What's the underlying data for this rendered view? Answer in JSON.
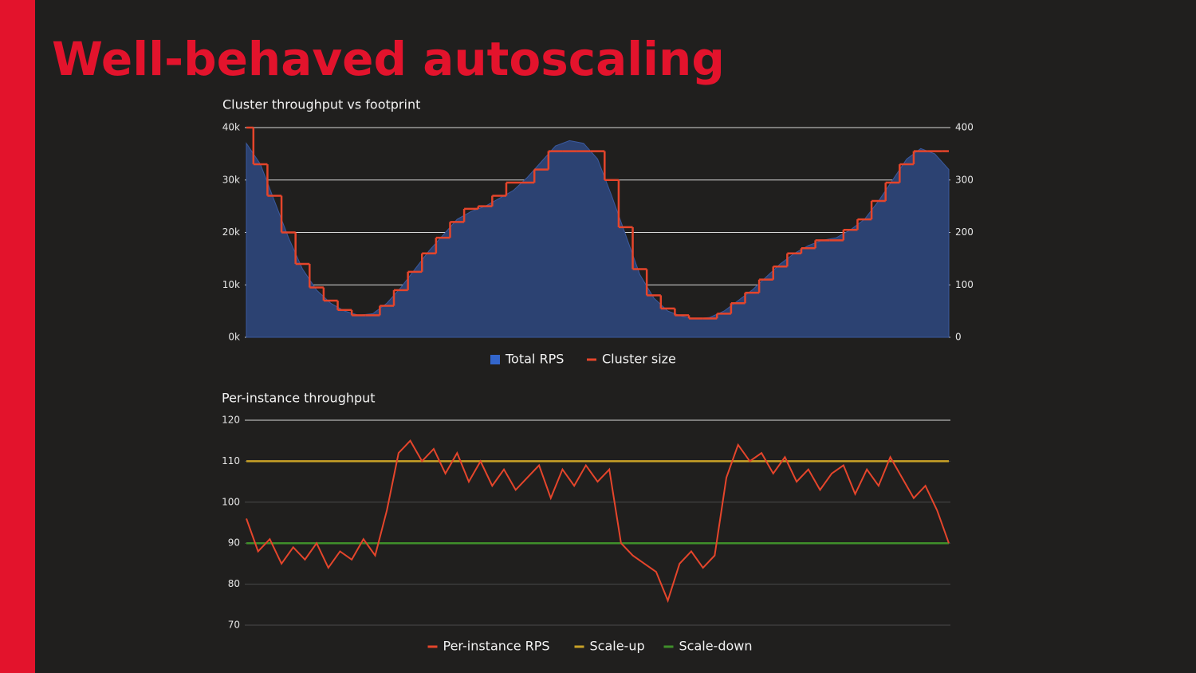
{
  "header": {
    "title": "Well-behaved autoscaling"
  },
  "chart_data": [
    {
      "type": "area",
      "title": "Cluster throughput vs footprint",
      "ylim": [
        0,
        40000
      ],
      "yticks": [
        {
          "value": 0,
          "label": "0k"
        },
        {
          "value": 10000,
          "label": "10k"
        },
        {
          "value": 20000,
          "label": "20k"
        },
        {
          "value": 30000,
          "label": "30k"
        },
        {
          "value": 40000,
          "label": "40k"
        }
      ],
      "y2lim": [
        0,
        400
      ],
      "y2ticks": [
        0,
        100,
        200,
        300,
        400
      ],
      "grid": true,
      "legend": "bottom",
      "series": [
        {
          "name": "Total RPS",
          "color": "#2c4272",
          "values": [
            37000,
            33000,
            26000,
            19000,
            13000,
            9000,
            6500,
            5000,
            4200,
            4500,
            6500,
            9500,
            13000,
            16500,
            19500,
            22500,
            24000,
            25000,
            26500,
            28000,
            30500,
            33500,
            36500,
            37500,
            37000,
            34000,
            27000,
            19500,
            12000,
            7500,
            5000,
            4000,
            3500,
            3800,
            5000,
            7000,
            9000,
            11500,
            14000,
            16000,
            17500,
            18500,
            19000,
            20500,
            22500,
            26000,
            30000,
            34000,
            36000,
            35000,
            32000
          ]
        },
        {
          "name": "Cluster size",
          "color": "#e5452b",
          "axis": "y2",
          "step": true,
          "values": [
            400,
            330,
            270,
            200,
            140,
            95,
            70,
            52,
            42,
            42,
            60,
            90,
            125,
            160,
            190,
            220,
            245,
            250,
            270,
            295,
            295,
            320,
            355,
            355,
            355,
            355,
            300,
            210,
            130,
            80,
            55,
            42,
            36,
            36,
            45,
            65,
            85,
            110,
            135,
            160,
            170,
            185,
            185,
            205,
            225,
            260,
            295,
            330,
            355,
            355,
            355
          ]
        }
      ]
    },
    {
      "type": "line",
      "title": "Per-instance throughput",
      "ylim": [
        70,
        120
      ],
      "yticks": [
        70,
        80,
        90,
        100,
        110,
        120
      ],
      "grid": true,
      "legend": "bottom",
      "series": [
        {
          "name": "Per-instance RPS",
          "color": "#e5452b",
          "values": [
            96,
            88,
            91,
            85,
            89,
            86,
            90,
            84,
            88,
            86,
            91,
            87,
            98,
            112,
            115,
            110,
            113,
            107,
            112,
            105,
            110,
            104,
            108,
            103,
            106,
            109,
            101,
            108,
            104,
            109,
            105,
            108,
            90,
            87,
            85,
            83,
            76,
            85,
            88,
            84,
            87,
            106,
            114,
            110,
            112,
            107,
            111,
            105,
            108,
            103,
            107,
            109,
            102,
            108,
            104,
            111,
            106,
            101,
            104,
            98,
            90
          ]
        },
        {
          "name": "Scale-up",
          "color": "#c9a227",
          "value": 110
        },
        {
          "name": "Scale-down",
          "color": "#3f8f2a",
          "value": 90
        }
      ]
    }
  ]
}
